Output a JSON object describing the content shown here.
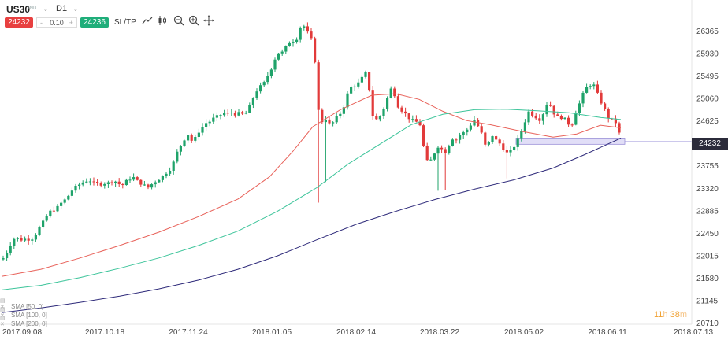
{
  "toolbar": {
    "symbol": "US30",
    "badge": "IND",
    "timeframe": "D1",
    "sell_price": "24232",
    "lot": "0.10",
    "lot_minus": "-",
    "lot_plus": "+",
    "buy_price": "24236",
    "sltp": "SL/TP",
    "tools": [
      "line-tool-icon",
      "candles-icon",
      "zoom-out-icon",
      "zoom-in-icon",
      "crosshair-icon"
    ]
  },
  "indicators": [
    {
      "label": "SMA [50, 0]",
      "color": "#e8625a"
    },
    {
      "label": "SMA [100, 0]",
      "color": "#3cc49a"
    },
    {
      "label": "SMA [200, 0]",
      "color": "#2e2a7a"
    }
  ],
  "current_price_label": "24232",
  "countdown": {
    "hours": "11",
    "h": "h",
    "minutes": "38",
    "m": "m"
  },
  "chart_data": {
    "type": "candlestick",
    "symbol": "US30",
    "timeframe": "D1",
    "ylim": [
      20710,
      26800
    ],
    "y_ticks": [
      26365,
      25930,
      25495,
      25060,
      24625,
      24190,
      23755,
      23320,
      22885,
      22450,
      22015,
      21580,
      21145,
      20710
    ],
    "x_ticks": [
      "2017.09.08",
      "2017.10.18",
      "2017.11.24",
      "2018.01.05",
      "2018.02.14",
      "2018.03.22",
      "2018.05.02",
      "2018.06.11",
      "2018.07.13"
    ],
    "current_price": 24232,
    "support_zone": [
      24180,
      24300
    ],
    "colors": {
      "up": "#1fa36a",
      "down": "#e23a3a",
      "sma50": "#e8625a",
      "sma100": "#3cc49a",
      "sma200": "#2e2a7a",
      "zone": "#c9c3f0"
    },
    "close_path": [
      [
        0,
        21950
      ],
      [
        4,
        22000
      ],
      [
        8,
        22150
      ],
      [
        13,
        22280
      ],
      [
        17,
        22380
      ],
      [
        22,
        22350
      ],
      [
        27,
        22320
      ],
      [
        31,
        22360
      ],
      [
        36,
        22330
      ],
      [
        41,
        22380
      ],
      [
        45,
        22480
      ],
      [
        50,
        22620
      ],
      [
        55,
        22720
      ],
      [
        59,
        22850
      ],
      [
        64,
        22900
      ],
      [
        69,
        22920
      ],
      [
        73,
        23000
      ],
      [
        78,
        23080
      ],
      [
        83,
        23130
      ],
      [
        87,
        23250
      ],
      [
        92,
        23330
      ],
      [
        97,
        23380
      ],
      [
        101,
        23430
      ],
      [
        106,
        23460
      ],
      [
        111,
        23500
      ],
      [
        115,
        23430
      ],
      [
        120,
        23420
      ],
      [
        125,
        23400
      ],
      [
        129,
        23430
      ],
      [
        134,
        23420
      ],
      [
        139,
        23460
      ],
      [
        143,
        23480
      ],
      [
        148,
        23420
      ],
      [
        153,
        23380
      ],
      [
        157,
        23450
      ],
      [
        162,
        23500
      ],
      [
        166,
        23560
      ],
      [
        171,
        23480
      ],
      [
        176,
        23430
      ],
      [
        180,
        23400
      ],
      [
        185,
        23330
      ],
      [
        190,
        23400
      ],
      [
        194,
        23450
      ],
      [
        199,
        23500
      ],
      [
        204,
        23550
      ],
      [
        208,
        23620
      ],
      [
        213,
        23680
      ],
      [
        218,
        23820
      ],
      [
        222,
        24000
      ],
      [
        227,
        24150
      ],
      [
        232,
        24280
      ],
      [
        236,
        24380
      ],
      [
        241,
        24250
      ],
      [
        246,
        24300
      ],
      [
        250,
        24420
      ],
      [
        255,
        24520
      ],
      [
        260,
        24600
      ],
      [
        264,
        24620
      ],
      [
        269,
        24680
      ],
      [
        274,
        24720
      ],
      [
        278,
        24750
      ],
      [
        283,
        24790
      ],
      [
        288,
        24760
      ],
      [
        292,
        24800
      ],
      [
        297,
        24760
      ],
      [
        302,
        24780
      ],
      [
        306,
        24760
      ],
      [
        311,
        24800
      ],
      [
        316,
        24950
      ],
      [
        320,
        25100
      ],
      [
        325,
        25250
      ],
      [
        330,
        25320
      ],
      [
        334,
        25380
      ],
      [
        339,
        25550
      ],
      [
        344,
        25700
      ],
      [
        348,
        25880
      ],
      [
        353,
        25980
      ],
      [
        358,
        25950
      ],
      [
        362,
        26100
      ],
      [
        367,
        26180
      ],
      [
        372,
        26180
      ],
      [
        376,
        26260
      ],
      [
        381,
        26550
      ],
      [
        386,
        26400
      ],
      [
        390,
        26300
      ],
      [
        395,
        26150
      ],
      [
        399,
        25600
      ],
      [
        404,
        24400
      ],
      [
        409,
        24800
      ],
      [
        413,
        24600
      ],
      [
        418,
        24550
      ],
      [
        423,
        24650
      ],
      [
        427,
        24750
      ],
      [
        432,
        24800
      ],
      [
        437,
        25050
      ],
      [
        441,
        25250
      ],
      [
        446,
        25300
      ],
      [
        451,
        25350
      ],
      [
        455,
        25380
      ],
      [
        460,
        25550
      ],
      [
        465,
        25550
      ],
      [
        469,
        24800
      ],
      [
        474,
        24650
      ],
      [
        479,
        24680
      ],
      [
        483,
        24800
      ],
      [
        488,
        25000
      ],
      [
        493,
        25250
      ],
      [
        497,
        25250
      ],
      [
        502,
        24950
      ],
      [
        507,
        24850
      ],
      [
        511,
        24800
      ],
      [
        516,
        24700
      ],
      [
        521,
        24650
      ],
      [
        525,
        24600
      ],
      [
        530,
        24650
      ],
      [
        535,
        24200
      ],
      [
        539,
        23850
      ],
      [
        544,
        23850
      ],
      [
        549,
        24000
      ],
      [
        553,
        24150
      ],
      [
        558,
        24100
      ],
      [
        562,
        24000
      ],
      [
        567,
        24150
      ],
      [
        572,
        24300
      ],
      [
        576,
        24250
      ],
      [
        581,
        24350
      ],
      [
        586,
        24400
      ],
      [
        590,
        24450
      ],
      [
        595,
        24550
      ],
      [
        600,
        24650
      ],
      [
        604,
        24550
      ],
      [
        609,
        24400
      ],
      [
        614,
        24150
      ],
      [
        618,
        24200
      ],
      [
        623,
        24350
      ],
      [
        628,
        24250
      ],
      [
        632,
        24200
      ],
      [
        637,
        24100
      ],
      [
        642,
        24000
      ],
      [
        646,
        24050
      ],
      [
        651,
        24150
      ],
      [
        656,
        24300
      ],
      [
        660,
        24450
      ],
      [
        665,
        24650
      ],
      [
        670,
        24850
      ],
      [
        674,
        24750
      ],
      [
        679,
        24700
      ],
      [
        684,
        24650
      ],
      [
        688,
        24800
      ],
      [
        693,
        25000
      ],
      [
        698,
        24900
      ],
      [
        702,
        24750
      ],
      [
        707,
        24700
      ],
      [
        712,
        24700
      ],
      [
        716,
        24650
      ],
      [
        721,
        24550
      ],
      [
        726,
        24600
      ],
      [
        730,
        24900
      ],
      [
        735,
        25000
      ],
      [
        740,
        25250
      ],
      [
        744,
        25300
      ],
      [
        749,
        25350
      ],
      [
        754,
        25300
      ],
      [
        758,
        25050
      ],
      [
        763,
        24950
      ],
      [
        768,
        24750
      ],
      [
        772,
        24650
      ],
      [
        777,
        24650
      ],
      [
        782,
        24550
      ],
      [
        786,
        24232
      ]
    ],
    "sma50": [
      [
        0,
        21620
      ],
      [
        50,
        21760
      ],
      [
        100,
        21980
      ],
      [
        150,
        22220
      ],
      [
        200,
        22480
      ],
      [
        250,
        22780
      ],
      [
        300,
        23120
      ],
      [
        340,
        23550
      ],
      [
        370,
        24050
      ],
      [
        395,
        24520
      ],
      [
        430,
        24850
      ],
      [
        470,
        25130
      ],
      [
        500,
        25160
      ],
      [
        530,
        25050
      ],
      [
        560,
        24820
      ],
      [
        590,
        24640
      ],
      [
        620,
        24560
      ],
      [
        660,
        24430
      ],
      [
        700,
        24320
      ],
      [
        730,
        24380
      ],
      [
        760,
        24550
      ],
      [
        786,
        24500
      ]
    ],
    "sma100": [
      [
        0,
        21360
      ],
      [
        50,
        21450
      ],
      [
        100,
        21600
      ],
      [
        150,
        21780
      ],
      [
        200,
        21980
      ],
      [
        250,
        22220
      ],
      [
        300,
        22500
      ],
      [
        350,
        22880
      ],
      [
        400,
        23340
      ],
      [
        440,
        23800
      ],
      [
        480,
        24180
      ],
      [
        520,
        24560
      ],
      [
        560,
        24760
      ],
      [
        600,
        24850
      ],
      [
        640,
        24860
      ],
      [
        680,
        24830
      ],
      [
        720,
        24790
      ],
      [
        760,
        24700
      ],
      [
        786,
        24660
      ]
    ],
    "sma200": [
      [
        0,
        20920
      ],
      [
        50,
        21010
      ],
      [
        100,
        21120
      ],
      [
        150,
        21240
      ],
      [
        200,
        21380
      ],
      [
        250,
        21550
      ],
      [
        300,
        21760
      ],
      [
        350,
        22020
      ],
      [
        400,
        22330
      ],
      [
        450,
        22630
      ],
      [
        500,
        22880
      ],
      [
        550,
        23110
      ],
      [
        600,
        23310
      ],
      [
        650,
        23490
      ],
      [
        700,
        23720
      ],
      [
        740,
        23980
      ],
      [
        786,
        24300
      ]
    ]
  }
}
